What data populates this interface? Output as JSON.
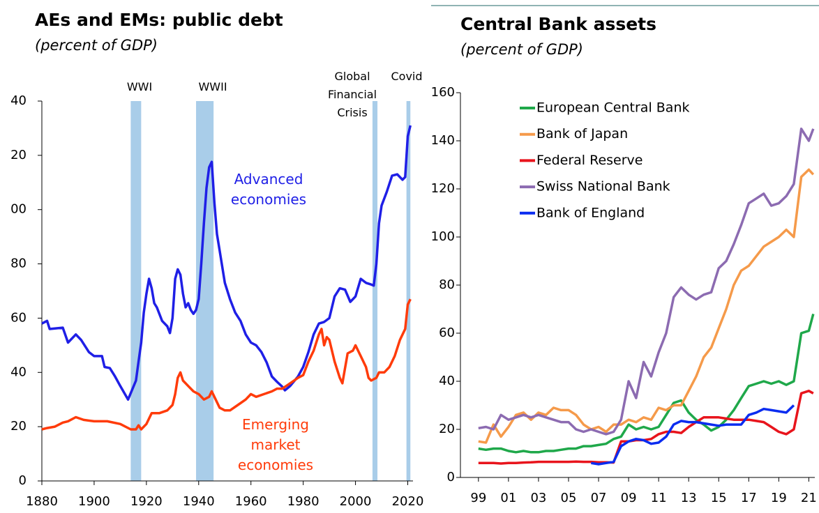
{
  "chart_data": [
    {
      "type": "line",
      "title": "AEs and EMs: public debt",
      "subtitle": "(percent of GDP)",
      "xlim": [
        1880,
        2022
      ],
      "xticks": [
        1880,
        1900,
        1920,
        1940,
        1960,
        1980,
        2000,
        2020
      ],
      "ylim": [
        0,
        140
      ],
      "yticks": [
        0,
        20,
        40,
        60,
        80,
        {
          "value": 100,
          "label": "00"
        },
        {
          "value": 120,
          "label": "20"
        },
        {
          "value": 140,
          "label": "40"
        }
      ],
      "shading": [
        {
          "label": "WWI",
          "start": 1914,
          "end": 1918,
          "color": "#a9cde9"
        },
        {
          "label": "WWII",
          "start": 1939,
          "end": 1945.7,
          "color": "#a9cde9"
        },
        {
          "label": "Global Financial Crisis",
          "start": 2006.5,
          "end": 2008.4,
          "color": "#a9cde9"
        },
        {
          "label": "Covid",
          "start": 2019.5,
          "end": 2021,
          "color": "#a9cde9"
        }
      ],
      "series": [
        {
          "name": "Advanced economies",
          "color": "#1f1fe6",
          "x": [
            1880,
            1882,
            1883,
            1888,
            1890,
            1893,
            1895,
            1898,
            1900,
            1903,
            1904,
            1906,
            1908,
            1910,
            1913,
            1916,
            1917,
            1918,
            1919,
            1920,
            1921,
            1922,
            1923,
            1924,
            1926,
            1928,
            1929,
            1930,
            1931,
            1932,
            1933,
            1934,
            1935,
            1936,
            1937,
            1938,
            1939,
            1940,
            1941,
            1942,
            1943,
            1944,
            1945,
            1946,
            1947,
            1948,
            1950,
            1952,
            1954,
            1956,
            1958,
            1960,
            1962,
            1964,
            1966,
            1968,
            1970,
            1972,
            1973,
            1975,
            1978,
            1980,
            1982,
            1984,
            1986,
            1988,
            1990,
            1992,
            1994,
            1996,
            1998,
            2000,
            2002,
            2004,
            2006,
            2007,
            2008,
            2009,
            2010,
            2012,
            2014,
            2016,
            2018,
            2019,
            2020,
            2021
          ],
          "values": [
            58,
            59,
            56,
            56.5,
            51,
            54,
            52,
            47.5,
            46,
            46,
            42,
            41.6,
            38.5,
            35,
            30,
            37,
            44,
            51,
            62,
            69,
            74.5,
            71,
            65.5,
            64,
            59,
            57,
            54.5,
            60,
            74.5,
            78,
            76,
            69,
            64,
            65.5,
            63,
            61.6,
            63,
            67,
            80,
            95,
            108,
            115.6,
            117.6,
            102.7,
            91,
            85,
            73,
            67,
            62,
            59,
            54,
            51,
            50,
            47.5,
            43.7,
            38.5,
            36.5,
            34.7,
            33.4,
            35,
            38.5,
            42,
            47.5,
            54,
            58,
            58.6,
            60,
            68,
            71,
            70.5,
            66,
            68,
            74.5,
            73,
            72.4,
            72,
            80,
            95,
            101.5,
            106.6,
            112.5,
            113,
            111,
            112,
            127,
            131
          ]
        },
        {
          "name": "Emerging market economies",
          "color": "#ff3b0a",
          "x": [
            1880,
            1882,
            1885,
            1888,
            1890,
            1893,
            1896,
            1900,
            1905,
            1910,
            1914,
            1916,
            1917,
            1918,
            1920,
            1922,
            1925,
            1928,
            1930,
            1931,
            1932,
            1933,
            1934,
            1936,
            1938,
            1940,
            1942,
            1944,
            1945,
            1946,
            1948,
            1950,
            1952,
            1955,
            1958,
            1960,
            1962,
            1965,
            1968,
            1970,
            1972,
            1975,
            1978,
            1980,
            1982,
            1984,
            1986,
            1987,
            1988,
            1989,
            1990,
            1992,
            1994,
            1995,
            1997,
            1999,
            2000,
            2002,
            2004,
            2005,
            2006,
            2008,
            2009,
            2011,
            2013,
            2015,
            2017,
            2019,
            2020,
            2021
          ],
          "values": [
            19,
            19.5,
            20,
            21.5,
            22,
            23.5,
            22.5,
            22,
            22,
            21,
            19,
            19,
            20.5,
            19,
            21,
            25,
            25,
            26,
            28,
            32,
            38,
            40,
            37,
            35,
            33,
            32,
            30,
            31,
            33,
            31,
            27,
            26,
            26,
            28,
            30,
            32,
            31,
            32,
            33,
            34,
            34,
            36,
            38,
            39,
            44,
            48,
            54,
            56,
            50,
            53,
            52,
            44,
            38,
            36,
            47,
            48,
            50,
            46,
            42,
            38,
            37,
            38,
            40,
            40,
            42,
            46,
            52,
            56,
            65,
            67
          ]
        }
      ]
    },
    {
      "type": "line",
      "title": "Central Bank assets",
      "subtitle": "(percent of GDP)",
      "xlim": [
        1997.8,
        2021.4
      ],
      "xticks": [
        {
          "value": 1999,
          "label": "99"
        },
        {
          "value": 2001,
          "label": "01"
        },
        {
          "value": 2003,
          "label": "03"
        },
        {
          "value": 2005,
          "label": "05"
        },
        {
          "value": 2007,
          "label": "07"
        },
        {
          "value": 2009,
          "label": "09"
        },
        {
          "value": 2011,
          "label": "11"
        },
        {
          "value": 2013,
          "label": "13"
        },
        {
          "value": 2015,
          "label": "15"
        },
        {
          "value": 2017,
          "label": "17"
        },
        {
          "value": 2019,
          "label": "19"
        },
        {
          "value": 2021,
          "label": "21"
        }
      ],
      "ylim": [
        0,
        160
      ],
      "yticks": [
        0,
        20,
        40,
        60,
        80,
        100,
        120,
        140,
        160
      ],
      "legend": "upper left",
      "x": [
        1999,
        1999.5,
        2000,
        2000.5,
        2001,
        2001.5,
        2002,
        2002.5,
        2003,
        2003.5,
        2004,
        2004.5,
        2005,
        2005.5,
        2006,
        2006.5,
        2007,
        2007.5,
        2008,
        2008.5,
        2009,
        2009.5,
        2010,
        2010.5,
        2011,
        2011.5,
        2012,
        2012.5,
        2013,
        2013.5,
        2014,
        2014.5,
        2015,
        2015.5,
        2016,
        2016.5,
        2017,
        2017.5,
        2018,
        2018.5,
        2019,
        2019.5,
        2020,
        2020.5,
        2021,
        2021.3
      ],
      "series": [
        {
          "name": "European Central Bank",
          "color": "#1fa84a",
          "values": [
            12,
            11.5,
            12,
            12,
            11,
            10.5,
            11,
            10.5,
            10.5,
            11,
            11,
            11.5,
            12,
            12,
            13,
            13,
            13.5,
            14,
            16,
            17,
            22,
            20,
            21,
            20,
            21,
            26,
            31,
            32,
            27,
            24,
            22,
            19.5,
            21,
            24,
            28,
            33,
            38,
            39,
            40,
            39,
            40,
            38.5,
            40,
            60,
            61,
            68
          ]
        },
        {
          "name": "Bank of Japan",
          "color": "#f59a4a",
          "values": [
            15,
            14.5,
            22,
            17,
            21,
            26,
            27,
            24,
            27,
            26,
            29,
            28,
            28,
            26,
            22,
            20,
            21,
            19,
            22,
            22,
            24,
            23,
            25,
            24,
            29,
            28,
            30,
            30,
            36,
            42,
            50,
            54,
            62,
            70,
            80,
            86,
            88,
            92,
            96,
            98,
            100,
            103,
            100,
            125,
            128,
            126
          ]
        },
        {
          "name": "Federal Reserve",
          "color": "#e8141c",
          "values": [
            6,
            6,
            6,
            5.8,
            6,
            6,
            6.2,
            6.3,
            6.5,
            6.5,
            6.5,
            6.5,
            6.5,
            6.6,
            6.5,
            6.5,
            6.3,
            6.3,
            6.2,
            15,
            15,
            15.5,
            15.5,
            16,
            18,
            19,
            19,
            18.5,
            21,
            23,
            25,
            25,
            25,
            24.5,
            24,
            24,
            24,
            23.5,
            23,
            21,
            19,
            18,
            20,
            35,
            36,
            35
          ]
        },
        {
          "name": "Swiss National Bank",
          "color": "#8c6bb1",
          "values": [
            20.5,
            21,
            20,
            26,
            24,
            25,
            26,
            25,
            26,
            25,
            24,
            23,
            23,
            20,
            19,
            20,
            19,
            18,
            19,
            24,
            40,
            33,
            48,
            42,
            52,
            60,
            75,
            79,
            76,
            74,
            76,
            77,
            87,
            90,
            97,
            105,
            114,
            116,
            118,
            113,
            114,
            117,
            122,
            145,
            140,
            145
          ]
        },
        {
          "name": "Bank of England",
          "color": "#0a2cf0",
          "values": [
            null,
            null,
            null,
            null,
            null,
            null,
            null,
            null,
            null,
            null,
            null,
            null,
            null,
            null,
            null,
            6,
            5.5,
            6,
            6.5,
            13,
            15,
            16,
            15.5,
            14,
            14.5,
            17,
            22,
            23.5,
            23,
            23,
            22.5,
            22,
            21.5,
            22,
            22,
            22,
            26,
            27,
            28.5,
            28,
            27.5,
            27,
            30,
            null,
            null,
            null
          ]
        }
      ]
    }
  ]
}
